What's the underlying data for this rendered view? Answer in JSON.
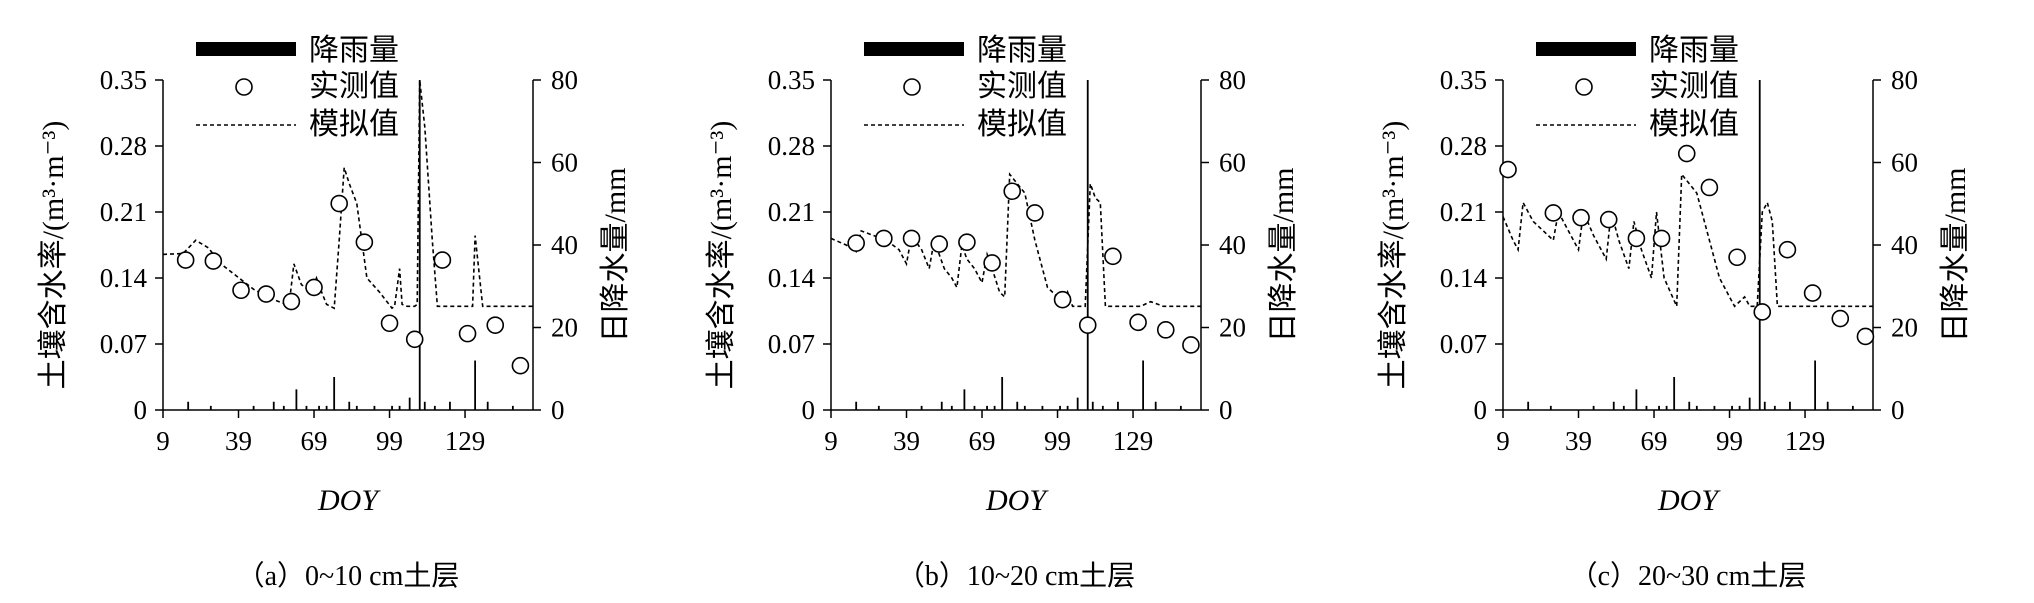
{
  "chart_data": [
    {
      "type": "line",
      "caption": "（a）0~10 cm土层",
      "xlabel": "DOY",
      "ylabel": "土壤含水率/(m³·m⁻³)",
      "y2label": "日降水量/mm",
      "xticks": [
        "9",
        "39",
        "69",
        "99",
        "129"
      ],
      "yticks": [
        "0",
        "0.07",
        "0.14",
        "0.21",
        "0.28",
        "0.35"
      ],
      "y2ticks": [
        "0",
        "20",
        "40",
        "60",
        "80"
      ],
      "xlim": [
        9,
        156
      ],
      "ylim": [
        0,
        0.35
      ],
      "y2lim": [
        0,
        80
      ],
      "legend": [
        "降雨量",
        "实测值",
        "模拟值"
      ],
      "legend_position": "top-left",
      "series": [
        {
          "name": "降雨量",
          "kind": "bar",
          "axis": "y2",
          "x": [
            19,
            28,
            45,
            53,
            57,
            62,
            66,
            71,
            74,
            77,
            83,
            86,
            93,
            100,
            103,
            107,
            111,
            113,
            117,
            123,
            133,
            138,
            148
          ],
          "values": [
            2,
            1,
            1,
            2,
            1,
            5,
            1,
            1,
            1,
            8,
            2,
            1,
            1,
            1,
            1,
            3,
            80,
            2,
            1,
            2,
            12,
            2,
            1
          ]
        },
        {
          "name": "实测值",
          "kind": "scatter",
          "axis": "y",
          "x": [
            18,
            29,
            40,
            50,
            60,
            69,
            79,
            89,
            99,
            109,
            120,
            130,
            141,
            151
          ],
          "values": [
            0.159,
            0.158,
            0.127,
            0.123,
            0.115,
            0.13,
            0.219,
            0.178,
            0.092,
            0.075,
            0.159,
            0.081,
            0.09,
            0.047
          ]
        },
        {
          "name": "模拟值",
          "kind": "line",
          "axis": "y",
          "x": [
            9,
            17,
            22,
            27,
            32,
            45,
            52,
            57,
            59,
            61,
            64,
            68,
            70,
            72,
            74,
            77,
            79,
            81,
            83,
            86,
            90,
            95,
            100,
            101,
            103,
            104,
            106,
            109,
            110,
            111,
            113,
            116,
            118,
            121,
            124,
            126,
            128,
            132,
            133,
            136,
            156
          ],
          "values": [
            0.165,
            0.166,
            0.18,
            0.172,
            0.155,
            0.128,
            0.118,
            0.113,
            0.11,
            0.155,
            0.133,
            0.125,
            0.14,
            0.125,
            0.112,
            0.108,
            0.18,
            0.257,
            0.24,
            0.219,
            0.14,
            0.125,
            0.108,
            0.11,
            0.15,
            0.112,
            0.11,
            0.11,
            0.112,
            0.35,
            0.3,
            0.18,
            0.11,
            0.11,
            0.11,
            0.11,
            0.11,
            0.11,
            0.185,
            0.11,
            0.11
          ]
        }
      ]
    },
    {
      "type": "line",
      "caption": "（b）10~20 cm土层",
      "xlabel": "DOY",
      "ylabel": "土壤含水率/(m³·m⁻³)",
      "y2label": "日降水量/mm",
      "xticks": [
        "9",
        "39",
        "69",
        "99",
        "129"
      ],
      "yticks": [
        "0",
        "0.07",
        "0.14",
        "0.21",
        "0.28",
        "0.35"
      ],
      "y2ticks": [
        "0",
        "20",
        "40",
        "60",
        "80"
      ],
      "xlim": [
        9,
        156
      ],
      "ylim": [
        0,
        0.35
      ],
      "y2lim": [
        0,
        80
      ],
      "legend": [
        "降雨量",
        "实测值",
        "模拟值"
      ],
      "legend_position": "top-left",
      "series": [
        {
          "name": "降雨量",
          "kind": "bar",
          "axis": "y2",
          "x": [
            19,
            28,
            45,
            53,
            57,
            62,
            66,
            71,
            74,
            77,
            83,
            86,
            93,
            100,
            103,
            107,
            111,
            113,
            117,
            123,
            133,
            138,
            148
          ],
          "values": [
            2,
            1,
            1,
            2,
            1,
            5,
            1,
            1,
            1,
            8,
            2,
            1,
            1,
            1,
            1,
            3,
            80,
            2,
            1,
            2,
            12,
            2,
            1
          ]
        },
        {
          "name": "实测值",
          "kind": "scatter",
          "axis": "y",
          "x": [
            19,
            30,
            41,
            52,
            63,
            73,
            81,
            90,
            101,
            111,
            121,
            131,
            142,
            152
          ],
          "values": [
            0.177,
            0.182,
            0.182,
            0.176,
            0.178,
            0.156,
            0.232,
            0.209,
            0.117,
            0.09,
            0.163,
            0.093,
            0.085,
            0.069
          ]
        },
        {
          "name": "模拟值",
          "kind": "line",
          "axis": "y",
          "x": [
            9,
            15,
            19,
            21,
            26,
            31,
            36,
            39,
            41,
            45,
            48,
            50,
            52,
            54,
            57,
            59,
            61,
            63,
            66,
            69,
            71,
            73,
            76,
            78,
            80,
            83,
            86,
            90,
            95,
            99,
            101,
            103,
            105,
            110,
            112,
            114,
            116,
            118,
            121,
            126,
            132,
            136,
            141,
            156
          ],
          "values": [
            0.182,
            0.175,
            0.168,
            0.19,
            0.185,
            0.18,
            0.17,
            0.155,
            0.185,
            0.17,
            0.15,
            0.18,
            0.165,
            0.15,
            0.14,
            0.13,
            0.175,
            0.16,
            0.15,
            0.135,
            0.165,
            0.15,
            0.125,
            0.12,
            0.25,
            0.24,
            0.23,
            0.18,
            0.13,
            0.12,
            0.11,
            0.125,
            0.11,
            0.11,
            0.24,
            0.225,
            0.22,
            0.11,
            0.11,
            0.11,
            0.11,
            0.115,
            0.11,
            0.11
          ]
        }
      ]
    },
    {
      "type": "line",
      "caption": "（c）20~30 cm土层",
      "xlabel": "DOY",
      "ylabel": "土壤含水率/(m³·m⁻³)",
      "y2label": "日降水量/mm",
      "xticks": [
        "9",
        "39",
        "69",
        "99",
        "129"
      ],
      "yticks": [
        "0",
        "0.07",
        "0.14",
        "0.21",
        "0.28",
        "0.35"
      ],
      "y2ticks": [
        "0",
        "20",
        "40",
        "60",
        "80"
      ],
      "xlim": [
        9,
        156
      ],
      "ylim": [
        0,
        0.35
      ],
      "y2lim": [
        0,
        80
      ],
      "legend": [
        "降雨量",
        "实测值",
        "模拟值"
      ],
      "legend_position": "top-left",
      "series": [
        {
          "name": "降雨量",
          "kind": "bar",
          "axis": "y2",
          "x": [
            19,
            28,
            45,
            53,
            57,
            62,
            66,
            71,
            74,
            77,
            83,
            86,
            93,
            100,
            103,
            107,
            111,
            113,
            117,
            123,
            133,
            138,
            148
          ],
          "values": [
            2,
            1,
            1,
            2,
            1,
            5,
            1,
            1,
            1,
            8,
            2,
            1,
            1,
            1,
            1,
            3,
            80,
            2,
            1,
            2,
            12,
            2,
            1
          ]
        },
        {
          "name": "实测值",
          "kind": "scatter",
          "axis": "y",
          "x": [
            11,
            29,
            40,
            51,
            62,
            72,
            82,
            91,
            102,
            112,
            122,
            132,
            143,
            153
          ],
          "values": [
            0.255,
            0.209,
            0.204,
            0.202,
            0.182,
            0.182,
            0.272,
            0.236,
            0.162,
            0.104,
            0.17,
            0.124,
            0.097,
            0.078
          ]
        },
        {
          "name": "模拟值",
          "kind": "line",
          "axis": "y",
          "x": [
            9,
            13,
            15,
            17,
            21,
            25,
            29,
            31,
            35,
            39,
            41,
            45,
            50,
            52,
            55,
            59,
            61,
            64,
            68,
            70,
            73,
            78,
            80,
            83,
            86,
            90,
            95,
            99,
            101,
            105,
            107,
            110,
            112,
            114,
            116,
            118,
            121,
            126,
            136,
            156
          ],
          "values": [
            0.205,
            0.18,
            0.17,
            0.22,
            0.2,
            0.19,
            0.18,
            0.21,
            0.19,
            0.17,
            0.21,
            0.185,
            0.16,
            0.21,
            0.18,
            0.15,
            0.2,
            0.17,
            0.14,
            0.21,
            0.14,
            0.11,
            0.25,
            0.24,
            0.23,
            0.19,
            0.14,
            0.12,
            0.11,
            0.12,
            0.11,
            0.11,
            0.21,
            0.22,
            0.2,
            0.11,
            0.11,
            0.11,
            0.11,
            0.11
          ]
        }
      ]
    }
  ]
}
